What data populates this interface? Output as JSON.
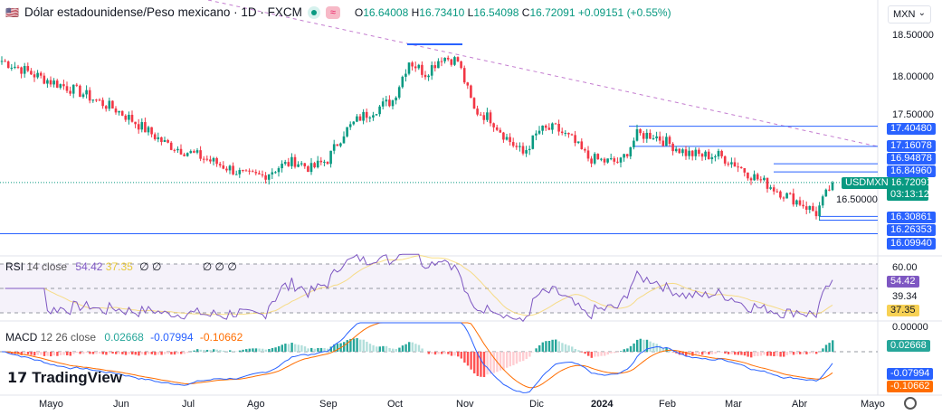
{
  "header": {
    "title": "Dólar estadounidense/Peso mexicano · 1D · FXCM",
    "open": "16.64008",
    "high": "16.73410",
    "low": "16.54098",
    "close": "16.72091",
    "change": "+0.09151 (+0.55%)",
    "o": "O",
    "h": "H",
    "l": "L",
    "c": "C"
  },
  "currency": "MXN",
  "symbol_label": "USDMXN",
  "countdown": "03:13:12",
  "colors": {
    "up": "#089981",
    "down": "#f23645",
    "level": "#2962ff",
    "rsi": "#7e57c2",
    "rsi_ma": "#f7d154",
    "macd": "#2962ff",
    "signal": "#ff6d00"
  },
  "chart_data": {
    "type": "candlestick",
    "price_axis": {
      "ticks": [
        "18.50000",
        "18.00000",
        "17.50000",
        "16.50000"
      ],
      "range": [
        16.0,
        18.5
      ]
    },
    "time_axis": [
      "Mayo",
      "Jun",
      "Jul",
      "Ago",
      "Sep",
      "Oct",
      "Nov",
      "Dic",
      "2024",
      "Feb",
      "Mar",
      "Abr",
      "Mayo"
    ],
    "weekly_closes": [
      18.2,
      18.12,
      18.03,
      17.95,
      17.88,
      17.8,
      17.7,
      17.61,
      17.48,
      17.34,
      17.2,
      17.12,
      17.05,
      16.97,
      16.89,
      16.8,
      16.8,
      16.91,
      16.98,
      16.89,
      17.0,
      17.33,
      17.51,
      17.62,
      17.72,
      18.2,
      18.05,
      18.25,
      18.2,
      17.6,
      17.5,
      17.26,
      17.07,
      17.35,
      17.38,
      17.24,
      17.02,
      16.98,
      16.97,
      17.3,
      17.3,
      17.19,
      17.08,
      17.05,
      17.05,
      16.95,
      16.81,
      16.7,
      16.58,
      16.48,
      16.35,
      16.72
    ],
    "last_price": "16.72091",
    "levels": [
      "17.40480",
      "17.16078",
      "16.94878",
      "16.84960",
      "16.30861",
      "16.26353",
      "16.09940"
    ],
    "rsi": {
      "label": "RSI",
      "params": "14 close",
      "value": "54.42",
      "ma": "37.35",
      "ticks": [
        "60.00",
        "39.34"
      ],
      "na": [
        "∅",
        "∅",
        "∅",
        "∅",
        "∅"
      ]
    },
    "macd": {
      "label": "MACD",
      "params": "12 26 close",
      "hist": "0.02668",
      "macd": "-0.07994",
      "signal": "-0.10662",
      "zero": "0.00000"
    }
  },
  "logo": "TradingView"
}
